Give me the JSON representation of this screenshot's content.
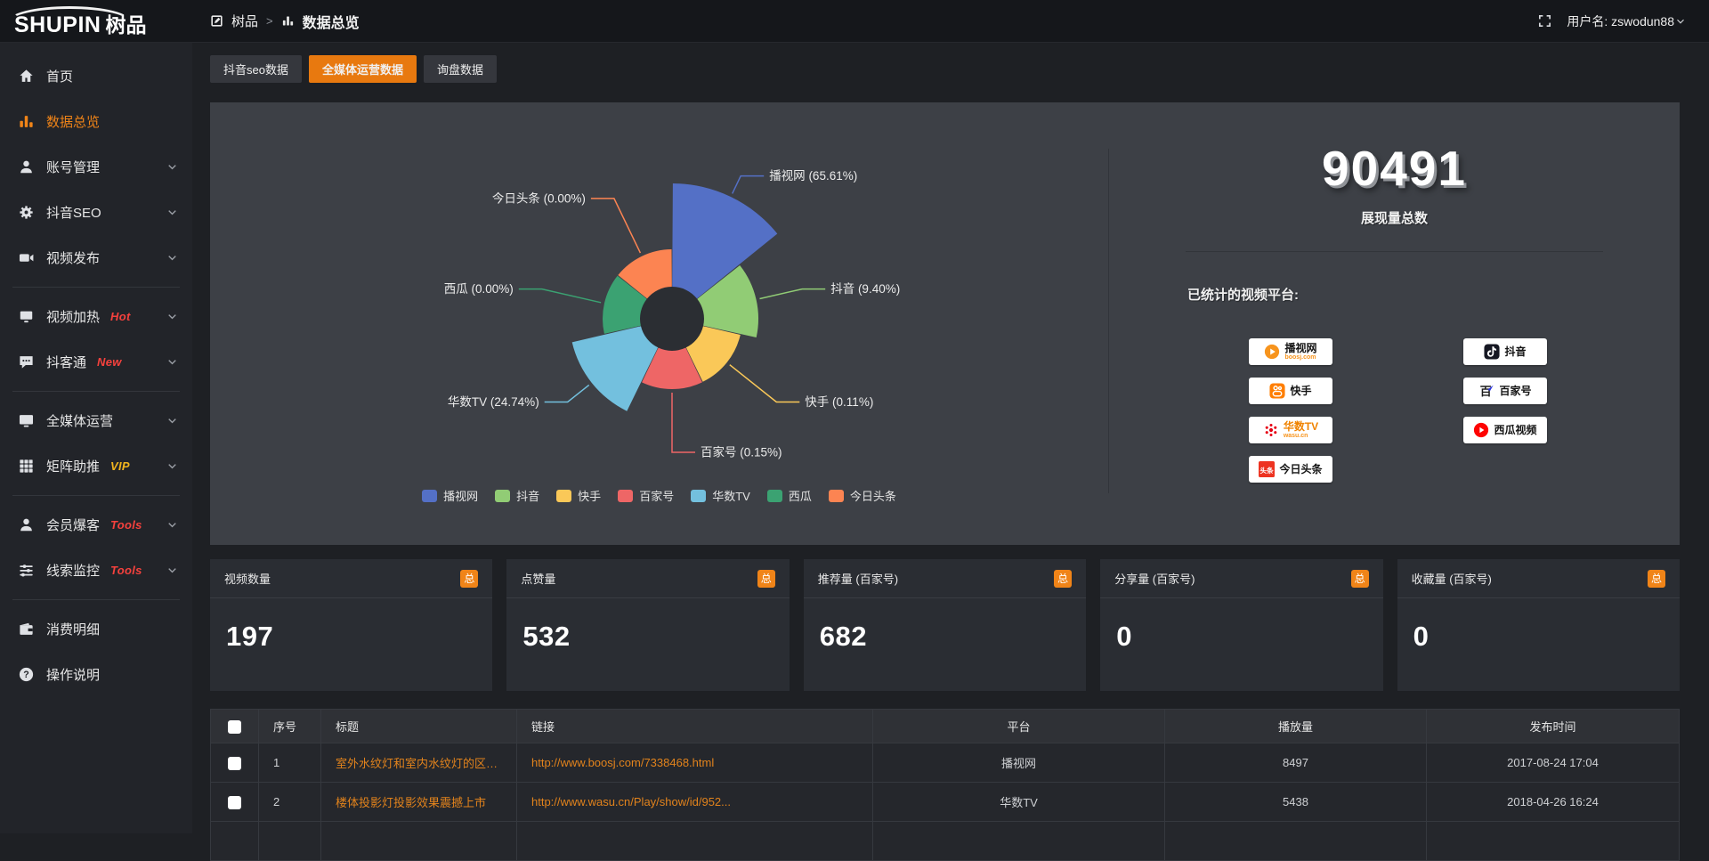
{
  "colors": {
    "accent_orange": "#e8790f",
    "badge_orange": "#f08418",
    "link_orange": "#e2831c",
    "hot_red": "#f5413d",
    "vip_gold": "#f0b41e",
    "panel_bg": "#3d4046"
  },
  "header": {
    "logo_en": "SHUPIN",
    "logo_cn": "树品",
    "breadcrumb": {
      "home_icon": "edit-square",
      "home": "树品",
      "sep": ">",
      "current_icon": "chart-bars",
      "current": "数据总览"
    },
    "fullscreen_icon": "fullscreen",
    "username_label": "用户名: zswodun88",
    "user_menu_icon": "chevron-down"
  },
  "sidebar": {
    "items": [
      {
        "icon": "home",
        "label": "首页"
      },
      {
        "icon": "chart-bars",
        "label": "数据总览",
        "active": true
      },
      {
        "icon": "user",
        "label": "账号管理",
        "chevron": true
      },
      {
        "icon": "gear",
        "label": "抖音SEO",
        "chevron": true
      },
      {
        "icon": "video-publish",
        "label": "视频发布",
        "chevron": true
      },
      {
        "divider": true
      },
      {
        "icon": "heat",
        "label": "视频加热",
        "badge": "Hot",
        "badge_color": "#f5413d",
        "chevron": true
      },
      {
        "icon": "chat",
        "label": "抖客通",
        "badge": "New",
        "badge_color": "#f5413d",
        "chevron": true
      },
      {
        "divider": true
      },
      {
        "icon": "monitor",
        "label": "全媒体运营",
        "chevron": true
      },
      {
        "icon": "grid",
        "label": "矩阵助推",
        "badge": "VIP",
        "badge_color": "#f0b41e",
        "chevron": true
      },
      {
        "divider": true
      },
      {
        "icon": "user-star",
        "label": "会员爆客",
        "badge": "Tools",
        "badge_color": "#f5413d",
        "chevron": true
      },
      {
        "icon": "sliders",
        "label": "线索监控",
        "badge": "Tools",
        "badge_color": "#f5413d",
        "chevron": true
      },
      {
        "divider": true
      },
      {
        "icon": "wallet",
        "label": "消费明细"
      },
      {
        "icon": "help",
        "label": "操作说明"
      }
    ]
  },
  "tabs": [
    {
      "label": "抖音seo数据",
      "active": false
    },
    {
      "label": "全媒体运营数据",
      "active": true
    },
    {
      "label": "询盘数据",
      "active": false
    }
  ],
  "chart_data": {
    "type": "pie",
    "variant": "nightingale-rose",
    "labels": [
      "播视网",
      "抖音",
      "快手",
      "百家号",
      "华数TV",
      "西瓜",
      "今日头条"
    ],
    "values_percent": [
      65.61,
      9.4,
      0.11,
      0.15,
      24.74,
      0.0,
      0.0
    ],
    "colors": [
      "#5470c6",
      "#91cc75",
      "#fac858",
      "#ee6666",
      "#73c0de",
      "#3ba272",
      "#fc8452"
    ],
    "label_format": "{name} ({value}%)",
    "legend_position": "bottom",
    "legend": [
      "播视网",
      "抖音",
      "快手",
      "百家号",
      "华数TV",
      "西瓜",
      "今日头条"
    ]
  },
  "summary": {
    "total_value": "90491",
    "total_label": "展现量总数",
    "platforms_label": "已统计的视频平台:",
    "platforms": [
      {
        "name": "播视网",
        "sub": "boosj.com",
        "icon": "boosj"
      },
      {
        "name": "抖音",
        "icon": "douyin"
      },
      {
        "name": "快手",
        "icon": "kuaishou"
      },
      {
        "name": "百家号",
        "icon": "baijiahao"
      },
      {
        "name": "华数TV",
        "sub": "wasu.cn",
        "icon": "wasu",
        "name_color": "#f08300"
      },
      {
        "name": "西瓜视频",
        "icon": "xigua"
      },
      {
        "name": "今日头条",
        "icon": "toutiao"
      }
    ]
  },
  "stat_cards": [
    {
      "label": "视频数量",
      "badge": "总",
      "value": "197"
    },
    {
      "label": "点赞量",
      "badge": "总",
      "value": "532"
    },
    {
      "label": "推荐量 (百家号)",
      "badge": "总",
      "value": "682"
    },
    {
      "label": "分享量 (百家号)",
      "badge": "总",
      "value": "0"
    },
    {
      "label": "收藏量 (百家号)",
      "badge": "总",
      "value": "0"
    }
  ],
  "table": {
    "headers": [
      "序号",
      "标题",
      "链接",
      "平台",
      "播放量",
      "发布时间"
    ],
    "rows": [
      {
        "seq": "1",
        "title": "室外水纹灯和室内水纹灯的区别和简介",
        "link": "http://www.boosj.com/7338468.html",
        "platform": "播视网",
        "views": "8497",
        "time": "2017-08-24 17:04"
      },
      {
        "seq": "2",
        "title": "楼体投影灯投影效果震撼上市",
        "link": "http://www.wasu.cn/Play/show/id/952...",
        "platform": "华数TV",
        "views": "5438",
        "time": "2018-04-26 16:24"
      }
    ]
  }
}
